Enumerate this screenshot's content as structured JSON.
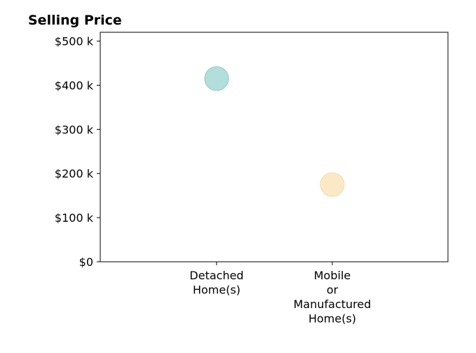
{
  "chart_data": {
    "type": "scatter",
    "title": "Selling Price",
    "xlabel": "",
    "ylabel": "",
    "categories": [
      [
        "Detached",
        "Home(s)"
      ],
      [
        "Mobile",
        "or",
        "Manufactured",
        "Home(s)"
      ]
    ],
    "values": [
      415000,
      175000
    ],
    "point_colors": [
      "#b2dfdb",
      "#fbe9c6"
    ],
    "point_stroke_colors": [
      "#8fcac4",
      "#f3dcae"
    ],
    "ylim": [
      0,
      520000
    ],
    "yticks": [
      0,
      100000,
      200000,
      300000,
      400000,
      500000
    ],
    "ytick_labels": [
      "$0",
      "$100 k",
      "$200 k",
      "$300 k",
      "$400 k",
      "$500 k"
    ],
    "grid": false,
    "legend": "none"
  }
}
